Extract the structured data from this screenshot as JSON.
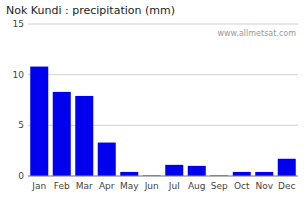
{
  "chart_data": {
    "type": "bar",
    "title": "Nok Kundi : precipitation (mm)",
    "categories": [
      "Jan",
      "Feb",
      "Mar",
      "Apr",
      "May",
      "Jun",
      "Jul",
      "Aug",
      "Sep",
      "Oct",
      "Nov",
      "Dec"
    ],
    "values": [
      10.8,
      8.3,
      7.9,
      3.3,
      0.4,
      0.05,
      1.1,
      1.0,
      0.05,
      0.4,
      0.4,
      1.7
    ],
    "color": "#0000ee",
    "ylim": [
      0,
      15
    ],
    "yticks": [
      0,
      5,
      10,
      15
    ],
    "grid": true,
    "annotations": [
      "www.allmetsat.com"
    ]
  }
}
